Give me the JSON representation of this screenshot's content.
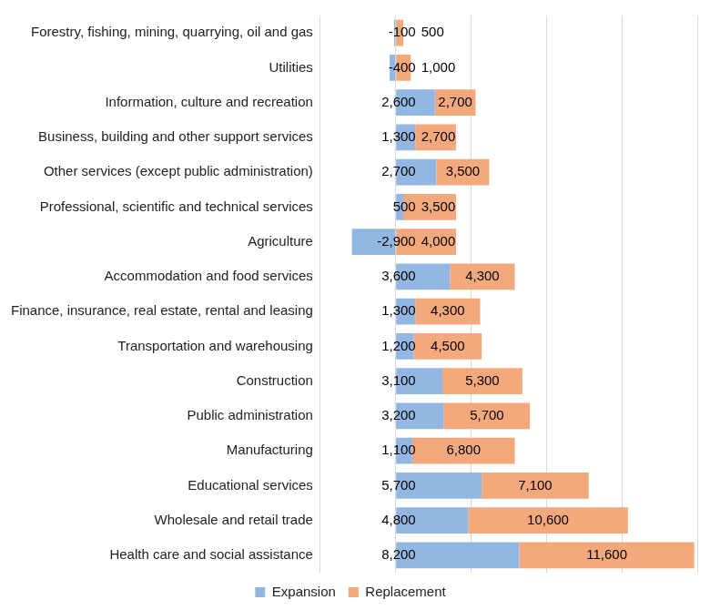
{
  "chart_data": {
    "type": "bar",
    "orientation": "horizontal",
    "stacked": true,
    "categories": [
      "Forestry, fishing, mining, quarrying, oil and gas",
      "Utilities",
      "Information, culture and recreation",
      "Business, building and other support services",
      "Other services (except public administration)",
      "Professional, scientific and technical services",
      "Agriculture",
      "Accommodation and food services",
      "Finance, insurance, real estate, rental and leasing",
      "Transportation and warehousing",
      "Construction",
      "Public administration",
      "Manufacturing",
      "Educational services",
      "Wholesale and retail trade",
      "Health care and social assistance"
    ],
    "series": [
      {
        "name": "Expansion",
        "color": "#93b7e3",
        "values": [
          -100,
          -400,
          2600,
          1300,
          2700,
          500,
          -2900,
          3600,
          1300,
          1200,
          3100,
          3200,
          1100,
          5700,
          4800,
          8200
        ],
        "value_labels": [
          "-100",
          "-400",
          "2,600",
          "1,300",
          "2,700",
          "500",
          "-2,900",
          "3,600",
          "1,300",
          "1,200",
          "3,100",
          "3,200",
          "1,100",
          "5,700",
          "4,800",
          "8,200"
        ]
      },
      {
        "name": "Replacement",
        "color": "#f4a97c",
        "values": [
          500,
          1000,
          2700,
          2700,
          3500,
          3500,
          4000,
          4300,
          4300,
          4500,
          5300,
          5700,
          6800,
          7100,
          10600,
          11600
        ],
        "value_labels": [
          "500",
          "1,000",
          "2,700",
          "2,700",
          "3,500",
          "3,500",
          "4,000",
          "4,300",
          "4,300",
          "4,500",
          "5,300",
          "5,700",
          "6,800",
          "7,100",
          "10,600",
          "11,600"
        ]
      }
    ],
    "xlim": [
      -5000,
      20000
    ],
    "xticks": [
      -5000,
      0,
      5000,
      10000,
      15000,
      20000
    ],
    "grid": true,
    "legend": "bottom",
    "data_labels": true,
    "tick_labels": "y"
  }
}
